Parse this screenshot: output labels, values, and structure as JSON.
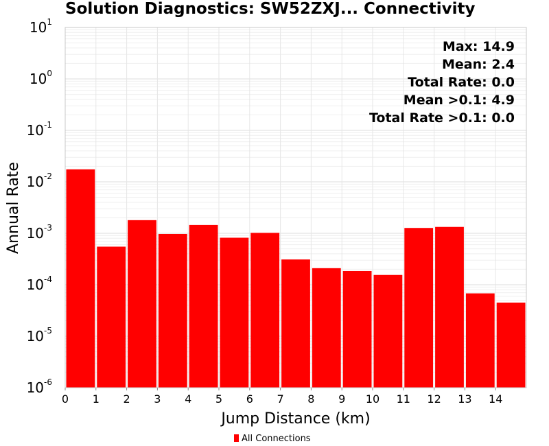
{
  "chart_data": {
    "type": "bar",
    "title": "Solution Diagnostics: SW52ZXJ... Connectivity",
    "xlabel": "Jump Distance (km)",
    "ylabel": "Annual Rate",
    "y_scale": "log",
    "ylim": [
      1e-06,
      10
    ],
    "y_ticks": [
      {
        "base": "10",
        "exp": "1"
      },
      {
        "base": "10",
        "exp": "0"
      },
      {
        "base": "10",
        "exp": "-1"
      },
      {
        "base": "10",
        "exp": "-2"
      },
      {
        "base": "10",
        "exp": "-3"
      },
      {
        "base": "10",
        "exp": "-4"
      },
      {
        "base": "10",
        "exp": "-5"
      },
      {
        "base": "10",
        "exp": "-6"
      }
    ],
    "xlim": [
      0,
      15
    ],
    "x_ticks": [
      "0",
      "1",
      "2",
      "3",
      "4",
      "5",
      "6",
      "7",
      "8",
      "9",
      "10",
      "11",
      "12",
      "13",
      "14"
    ],
    "bin_width": 1,
    "bins": [
      {
        "x": 0.5,
        "y": 0.0175
      },
      {
        "x": 1.5,
        "y": 0.00055
      },
      {
        "x": 2.5,
        "y": 0.0018
      },
      {
        "x": 3.5,
        "y": 0.00097
      },
      {
        "x": 4.5,
        "y": 0.00145
      },
      {
        "x": 5.5,
        "y": 0.00082
      },
      {
        "x": 6.5,
        "y": 0.00102
      },
      {
        "x": 7.5,
        "y": 0.00031
      },
      {
        "x": 8.5,
        "y": 0.00021
      },
      {
        "x": 9.5,
        "y": 0.000185
      },
      {
        "x": 10.5,
        "y": 0.000155
      },
      {
        "x": 11.5,
        "y": 0.00127
      },
      {
        "x": 12.5,
        "y": 0.00133
      },
      {
        "x": 13.5,
        "y": 6.8e-05
      },
      {
        "x": 14.5,
        "y": 4.5e-05
      }
    ],
    "series": [
      {
        "name": "All Connections",
        "color": "#ff0000"
      }
    ],
    "legend_position": "bottom-center",
    "grid": true,
    "stats": [
      "Max: 14.9",
      "Mean: 2.4",
      "Total Rate: 0.0",
      "Mean >0.1: 4.9",
      "Total Rate >0.1: 0.0"
    ]
  }
}
